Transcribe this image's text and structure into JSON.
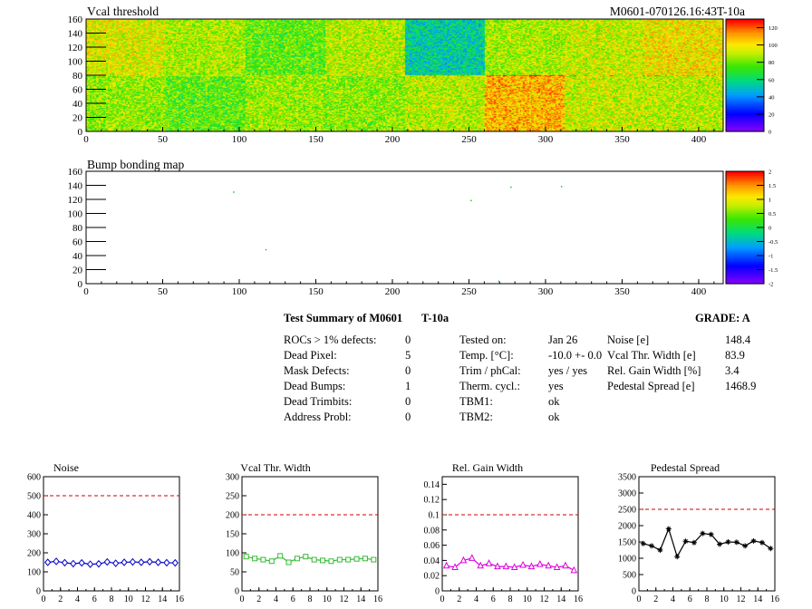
{
  "title_left": "Vcal threshold",
  "title_right": "M0601-070126.16:43T-10a",
  "summary": {
    "header": "Test Summary of M0601",
    "header_tag": "T-10a",
    "grade": "GRADE:  A",
    "col1": [
      {
        "label": "ROCs > 1% defects:",
        "value": "0"
      },
      {
        "label": "Dead Pixel:",
        "value": "5"
      },
      {
        "label": "Mask Defects:",
        "value": "0"
      },
      {
        "label": "Dead Bumps:",
        "value": "1"
      },
      {
        "label": "Dead Trimbits:",
        "value": "0"
      },
      {
        "label": "Address Probl:",
        "value": "0"
      }
    ],
    "col2": [
      {
        "label": "Tested on:",
        "value": "Jan 26"
      },
      {
        "label": "Temp. [°C]:",
        "value": "-10.0 +- 0.0"
      },
      {
        "label": "Trim / phCal:",
        "value": "yes / yes"
      },
      {
        "label": "Therm. cycl.:",
        "value": "yes"
      },
      {
        "label": "TBM1:",
        "value": "ok"
      },
      {
        "label": "TBM2:",
        "value": "ok"
      }
    ],
    "col3": [
      {
        "label": "Noise [e]",
        "value": "148.4"
      },
      {
        "label": "Vcal Thr. Width [e]",
        "value": "83.9"
      },
      {
        "label": "Rel. Gain Width [%]",
        "value": "3.4"
      },
      {
        "label": "Pedestal Spread [e]",
        "value": "1468.9"
      }
    ]
  },
  "chart_data": [
    {
      "type": "heatmap",
      "title": "Vcal threshold",
      "xlim": [
        0,
        416
      ],
      "ylim": [
        0,
        160
      ],
      "xticks": [
        0,
        50,
        100,
        150,
        200,
        250,
        300,
        350,
        400
      ],
      "yticks": [
        0,
        20,
        40,
        60,
        80,
        100,
        120,
        140,
        160
      ],
      "zlim": [
        0,
        130
      ],
      "zticks": [
        0,
        20,
        40,
        60,
        80,
        100,
        120
      ],
      "roc_means_top": [
        95,
        88,
        78,
        90,
        55,
        88,
        92,
        100
      ],
      "roc_means_bottom": [
        85,
        78,
        86,
        84,
        90,
        108,
        92,
        90
      ],
      "colors": {
        "low": "#8000ff",
        "mid": "#00e000",
        "yellow": "#f0f000",
        "high": "#ff0000"
      }
    },
    {
      "type": "heatmap",
      "title": "Bump bonding map",
      "xlim": [
        0,
        416
      ],
      "ylim": [
        0,
        160
      ],
      "xticks": [
        0,
        50,
        100,
        150,
        200,
        250,
        300,
        350,
        400
      ],
      "yticks": [
        0,
        20,
        40,
        60,
        80,
        100,
        120,
        140,
        160
      ],
      "zlim": [
        -2,
        2
      ],
      "zticks": [
        "2",
        "1.5",
        "1",
        "0.5",
        "0",
        "-0.5",
        "-1",
        "-1.5",
        "-2"
      ],
      "points": [
        [
          96,
          130
        ],
        [
          117,
          48
        ],
        [
          251,
          118
        ],
        [
          277,
          137
        ],
        [
          310,
          138
        ],
        [
          269,
          3
        ]
      ]
    },
    {
      "type": "line",
      "title": "Noise",
      "xlim": [
        0,
        16
      ],
      "ylim": [
        0,
        600
      ],
      "xticks": [
        0,
        2,
        4,
        6,
        8,
        10,
        12,
        14,
        16
      ],
      "yticks": [
        0,
        100,
        200,
        300,
        400,
        500,
        600
      ],
      "threshold": 500,
      "marker": "diamond",
      "color": "#0000cc",
      "x": [
        0.5,
        1.5,
        2.5,
        3.5,
        4.5,
        5.5,
        6.5,
        7.5,
        8.5,
        9.5,
        10.5,
        11.5,
        12.5,
        13.5,
        14.5,
        15.5
      ],
      "values": [
        150,
        155,
        148,
        143,
        147,
        140,
        142,
        152,
        145,
        150,
        152,
        150,
        153,
        150,
        148,
        147
      ]
    },
    {
      "type": "line",
      "title": "Vcal Thr. Width",
      "xlim": [
        0,
        16
      ],
      "ylim": [
        0,
        300
      ],
      "xticks": [
        0,
        2,
        4,
        6,
        8,
        10,
        12,
        14,
        16
      ],
      "yticks": [
        0,
        50,
        100,
        150,
        200,
        250,
        300
      ],
      "threshold": 200,
      "marker": "square",
      "color": "#33bb33",
      "x": [
        0.5,
        1.5,
        2.5,
        3.5,
        4.5,
        5.5,
        6.5,
        7.5,
        8.5,
        9.5,
        10.5,
        11.5,
        12.5,
        13.5,
        14.5,
        15.5
      ],
      "values": [
        90,
        85,
        82,
        78,
        92,
        75,
        85,
        90,
        82,
        80,
        78,
        82,
        82,
        84,
        85,
        82
      ]
    },
    {
      "type": "line",
      "title": "Rel. Gain Width",
      "xlim": [
        0,
        16
      ],
      "ylim": [
        0,
        0.15
      ],
      "xticks": [
        0,
        2,
        4,
        6,
        8,
        10,
        12,
        14,
        16
      ],
      "yticks": [
        0,
        0.02,
        0.04,
        0.06,
        0.08,
        0.1,
        0.12,
        0.14
      ],
      "threshold": 0.1,
      "marker": "triangle",
      "color": "#dd00dd",
      "x": [
        0.5,
        1.5,
        2.5,
        3.5,
        4.5,
        5.5,
        6.5,
        7.5,
        8.5,
        9.5,
        10.5,
        11.5,
        12.5,
        13.5,
        14.5,
        15.5
      ],
      "values": [
        0.033,
        0.031,
        0.04,
        0.043,
        0.033,
        0.036,
        0.032,
        0.032,
        0.031,
        0.034,
        0.032,
        0.035,
        0.033,
        0.031,
        0.033,
        0.027
      ]
    },
    {
      "type": "line",
      "title": "Pedestal Spread",
      "xlim": [
        0,
        16
      ],
      "ylim": [
        0,
        3500
      ],
      "xticks": [
        0,
        2,
        4,
        6,
        8,
        10,
        12,
        14,
        16
      ],
      "yticks": [
        0,
        500,
        1000,
        1500,
        2000,
        2500,
        3000,
        3500
      ],
      "threshold": 2500,
      "marker": "star",
      "color": "#000000",
      "x": [
        0.5,
        1.5,
        2.5,
        3.5,
        4.5,
        5.5,
        6.5,
        7.5,
        8.5,
        9.5,
        10.5,
        11.5,
        12.5,
        13.5,
        14.5,
        15.5
      ],
      "values": [
        1450,
        1380,
        1250,
        1900,
        1050,
        1520,
        1480,
        1760,
        1730,
        1430,
        1500,
        1490,
        1380,
        1530,
        1480,
        1300
      ]
    }
  ]
}
